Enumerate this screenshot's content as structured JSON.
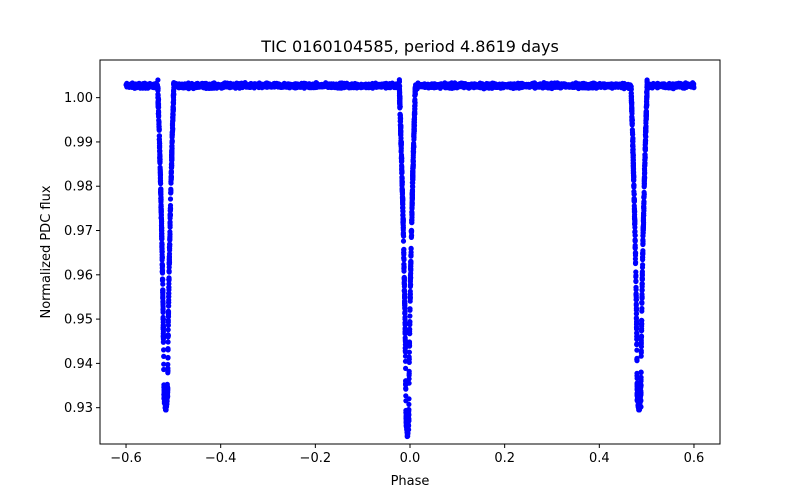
{
  "chart_data": {
    "type": "scatter",
    "title": "TIC 0160104585, period 4.8619 days",
    "xlabel": "Phase",
    "ylabel": "Normalized PDC flux",
    "xlim": [
      -0.655,
      0.655
    ],
    "ylim": [
      0.9218,
      1.0085
    ],
    "xticks": [
      -0.6,
      -0.4,
      -0.2,
      0.0,
      0.2,
      0.4,
      0.6
    ],
    "xtick_labels": [
      "−0.6",
      "−0.4",
      "−0.2",
      "0.0",
      "0.2",
      "0.4",
      "0.6"
    ],
    "yticks": [
      0.93,
      0.94,
      0.95,
      0.96,
      0.97,
      0.98,
      0.99,
      1.0
    ],
    "ytick_labels": [
      "0.93",
      "0.94",
      "0.95",
      "0.96",
      "0.97",
      "0.98",
      "0.99",
      "1.00"
    ],
    "grid": false,
    "marker_color": "#0000ff",
    "x_range": [
      -0.6,
      0.6
    ],
    "baseline": 1.0027,
    "baseline_scatter": 0.0008,
    "eclipses": [
      {
        "center": -0.516,
        "min_flux": 0.9305,
        "half_width": 0.017,
        "flat_half_width": 0.004
      },
      {
        "center": -0.0055,
        "min_flux": 0.9245,
        "half_width": 0.017,
        "flat_half_width": 0.003
      },
      {
        "center": 0.484,
        "min_flux": 0.9305,
        "half_width": 0.017,
        "flat_half_width": 0.004
      }
    ]
  }
}
